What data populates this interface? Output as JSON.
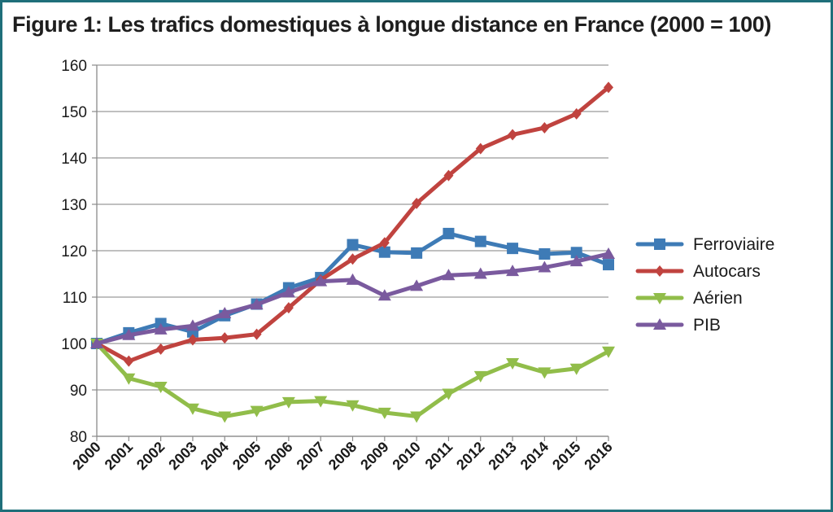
{
  "figure": {
    "title": "Figure 1: Les trafics domestiques à longue distance en France (2000 = 100)"
  },
  "chart_data": {
    "type": "line",
    "title": "Figure 1: Les trafics domestiques à longue distance en France (2000 = 100)",
    "xlabel": "",
    "ylabel": "",
    "x": [
      "2000",
      "2001",
      "2002",
      "2003",
      "2004",
      "2005",
      "2006",
      "2007",
      "2008",
      "2009",
      "2010",
      "2011",
      "2012",
      "2013",
      "2014",
      "2015",
      "2016"
    ],
    "ylim": [
      80,
      160
    ],
    "yticks": [
      80,
      90,
      100,
      110,
      120,
      130,
      140,
      150,
      160
    ],
    "grid": "horizontal",
    "legend_position": "right",
    "series": [
      {
        "name": "Ferroviaire",
        "color": "#3e7bb6",
        "marker": "square",
        "values": [
          100,
          102.3,
          104.3,
          102.5,
          106,
          108.5,
          112,
          114.2,
          121.3,
          119.7,
          119.5,
          123.7,
          122,
          120.5,
          119.3,
          119.6,
          117
        ]
      },
      {
        "name": "Autocars",
        "color": "#c0433f",
        "marker": "diamond",
        "values": [
          100,
          96.2,
          98.8,
          100.8,
          101.2,
          102,
          107.7,
          113.7,
          118.2,
          121.7,
          130.2,
          136.2,
          142,
          145,
          146.5,
          149.5,
          155.2
        ]
      },
      {
        "name": "Aérien",
        "color": "#91bd4a",
        "marker": "triangle-down",
        "values": [
          100,
          92.5,
          90.7,
          86,
          84.3,
          85.5,
          87.4,
          87.6,
          86.7,
          85.1,
          84.3,
          89.2,
          93,
          95.8,
          93.8,
          94.6,
          98.3
        ]
      },
      {
        "name": "PIB",
        "color": "#7a5a9e",
        "marker": "triangle-up",
        "values": [
          100,
          101.8,
          103,
          103.8,
          106.5,
          108.4,
          111,
          113.4,
          113.7,
          110.3,
          112.4,
          114.7,
          115,
          115.6,
          116.4,
          117.7,
          119.3
        ]
      }
    ]
  }
}
